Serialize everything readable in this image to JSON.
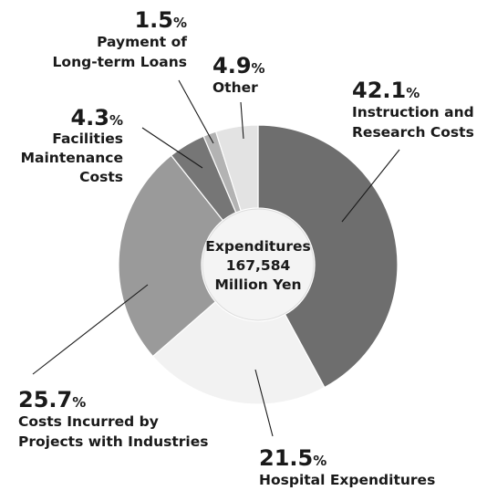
{
  "chart_data": {
    "type": "pie",
    "center_label": [
      "Expenditures",
      "167,584",
      "Million Yen"
    ],
    "slices": [
      {
        "name_lines": [
          "Instruction and",
          "Research Costs"
        ],
        "value": 42.1,
        "color": "#6e6e6e"
      },
      {
        "name_lines": [
          "Hospital Expenditures"
        ],
        "value": 21.5,
        "color": "#f2f2f2"
      },
      {
        "name_lines": [
          "Costs Incurred by",
          "Projects with Industries"
        ],
        "value": 25.7,
        "color": "#9a9a9a"
      },
      {
        "name_lines": [
          "Facilities",
          "Maintenance",
          "Costs"
        ],
        "value": 4.3,
        "color": "#767676"
      },
      {
        "name_lines": [
          "Payment of",
          "Long-term Loans"
        ],
        "value": 1.5,
        "color": "#b3b3b3"
      },
      {
        "name_lines": [
          "Other"
        ],
        "value": 4.9,
        "color": "#e3e3e3"
      }
    ],
    "value_suffix": "%"
  }
}
